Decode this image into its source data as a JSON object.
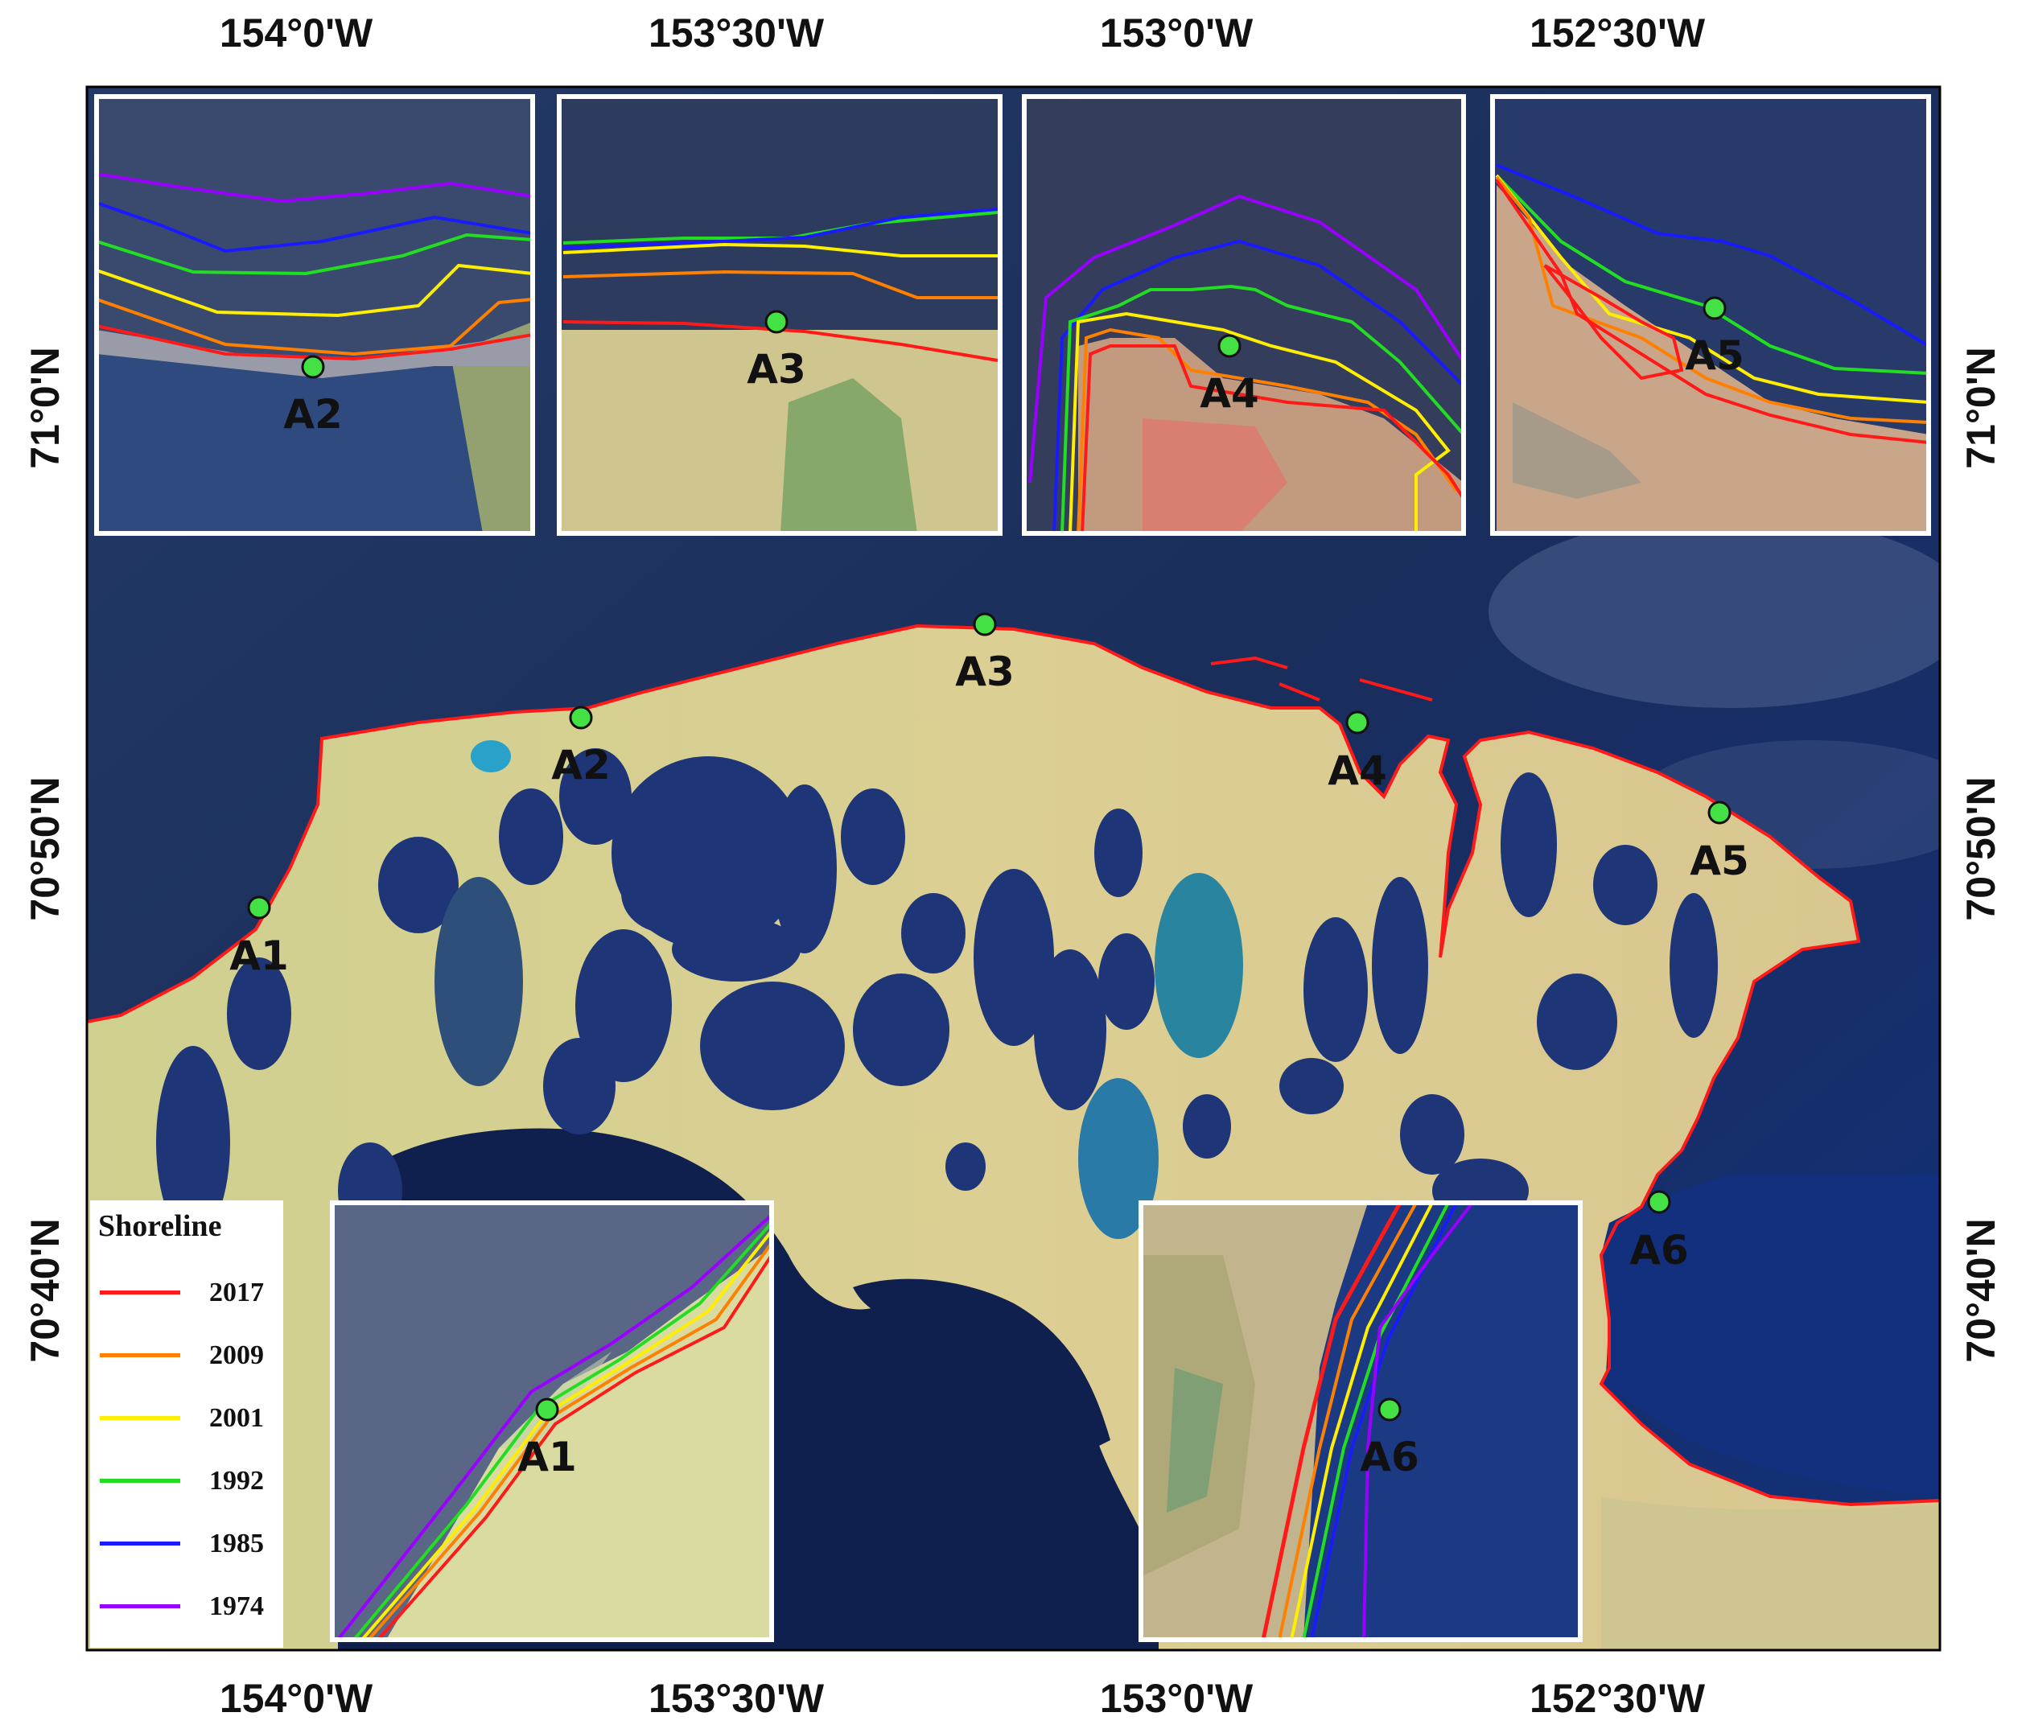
{
  "axes": {
    "top": [
      "154°0'W",
      "153°30'W",
      "153°0'W",
      "152°30'W"
    ],
    "bottom": [
      "154°0'W",
      "153°30'W",
      "153°0'W",
      "152°30'W"
    ],
    "left": [
      "71°0'N",
      "70°50'N",
      "70°40'N"
    ],
    "right": [
      "71°0'N",
      "70°50'N",
      "70°40'N"
    ]
  },
  "sites": {
    "main": [
      "A1",
      "A2",
      "A3",
      "A4",
      "A5",
      "A6"
    ],
    "inset_labels": {
      "A2": "A2",
      "A3": "A3",
      "A4": "A4",
      "A5": "A5",
      "A1": "A1",
      "A6": "A6"
    }
  },
  "legend": {
    "title": "Shoreline",
    "items": [
      {
        "year": "2017",
        "color": "#ff1a1a"
      },
      {
        "year": "2009",
        "color": "#ff8000"
      },
      {
        "year": "2001",
        "color": "#ffee00"
      },
      {
        "year": "1992",
        "color": "#22dd22"
      },
      {
        "year": "1985",
        "color": "#1a1aff"
      },
      {
        "year": "1974",
        "color": "#9900ff"
      }
    ]
  },
  "colors": {
    "sea": "#1b2f5e",
    "land": "#d8cf92",
    "lake": "#1f3a7a",
    "marker": "#44e144",
    "shoreline": "#ff1a1a"
  }
}
